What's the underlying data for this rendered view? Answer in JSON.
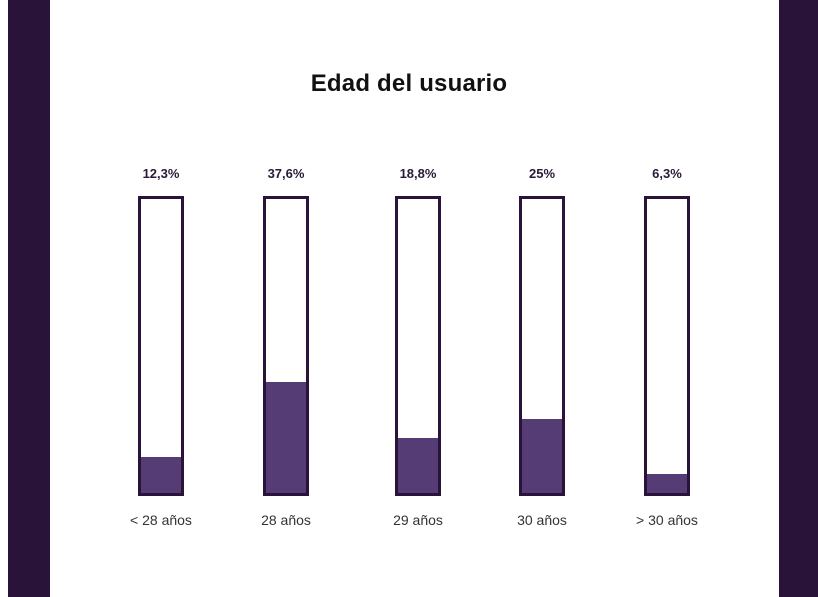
{
  "colors": {
    "side_band": "#2a1338",
    "bar_border": "#2a1338",
    "bar_fill": "#553c74",
    "background": "#ffffff"
  },
  "chart_data": {
    "type": "bar",
    "title": "Edad del usuario",
    "categories": [
      "< 28 años",
      "28 años",
      "29 años",
      "30 años",
      "> 30 años"
    ],
    "values": [
      12.3,
      37.6,
      18.8,
      25,
      6.3
    ],
    "value_labels": [
      "12,3%",
      "37,6%",
      "18,8%",
      "25%",
      "6,3%"
    ],
    "ylim": [
      0,
      100
    ],
    "grid": false,
    "legend": "none"
  }
}
